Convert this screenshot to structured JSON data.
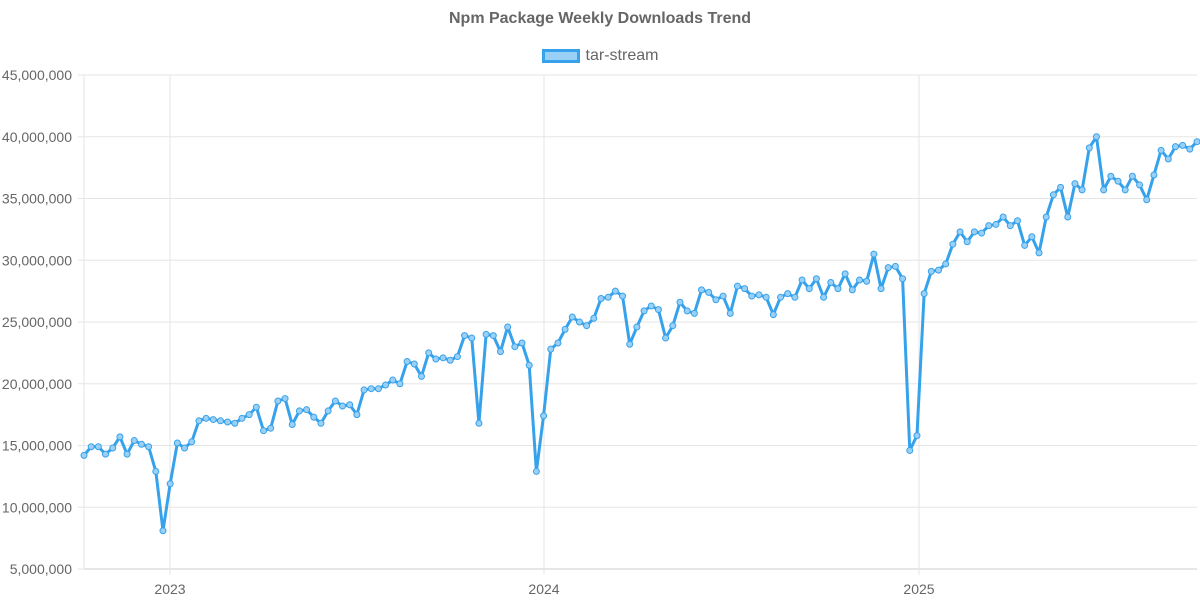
{
  "chart_data": {
    "type": "line",
    "title": "Npm Package Weekly Downloads Trend",
    "xlabel": "",
    "ylabel": "",
    "ylim": [
      5000000,
      45000000
    ],
    "y_ticks": [
      "5,000,000",
      "10,000,000",
      "15,000,000",
      "20,000,000",
      "25,000,000",
      "30,000,000",
      "35,000,000",
      "40,000,000",
      "45,000,000"
    ],
    "x_ticks": [
      "2023",
      "2024",
      "2025"
    ],
    "grid": true,
    "legend_position": "top",
    "colors": {
      "line": "#36a2eb",
      "fill": "#9ad0f5"
    },
    "series": [
      {
        "name": "tar-stream",
        "values": [
          14200000,
          14900000,
          14900000,
          14300000,
          14800000,
          15700000,
          14300000,
          15400000,
          15100000,
          14900000,
          12900000,
          8100000,
          11900000,
          15200000,
          14800000,
          15300000,
          17000000,
          17200000,
          17100000,
          17000000,
          16900000,
          16800000,
          17200000,
          17500000,
          18100000,
          16200000,
          16400000,
          18600000,
          18800000,
          16700000,
          17800000,
          17900000,
          17300000,
          16800000,
          17800000,
          18600000,
          18200000,
          18300000,
          17500000,
          19500000,
          19600000,
          19600000,
          19900000,
          20300000,
          20000000,
          21800000,
          21600000,
          20600000,
          22500000,
          22000000,
          22100000,
          21900000,
          22200000,
          23900000,
          23700000,
          16800000,
          24000000,
          23900000,
          22600000,
          24600000,
          23000000,
          23300000,
          21500000,
          12900000,
          17400000,
          22800000,
          23300000,
          24400000,
          25400000,
          25000000,
          24700000,
          25300000,
          26900000,
          27000000,
          27500000,
          27100000,
          23200000,
          24600000,
          25900000,
          26300000,
          26000000,
          23700000,
          24700000,
          26600000,
          25900000,
          25700000,
          27600000,
          27400000,
          26800000,
          27100000,
          25700000,
          27900000,
          27700000,
          27100000,
          27200000,
          27000000,
          25600000,
          27000000,
          27300000,
          27000000,
          28400000,
          27700000,
          28500000,
          27000000,
          28200000,
          27700000,
          28900000,
          27600000,
          28400000,
          28300000,
          30500000,
          27700000,
          29400000,
          29500000,
          28500000,
          14600000,
          15800000,
          27300000,
          29100000,
          29200000,
          29700000,
          31300000,
          32300000,
          31500000,
          32300000,
          32200000,
          32800000,
          32900000,
          33500000,
          32800000,
          33200000,
          31200000,
          31900000,
          30600000,
          33500000,
          35300000,
          35900000,
          33500000,
          36200000,
          35700000,
          39100000,
          40000000,
          35700000,
          36800000,
          36400000,
          35700000,
          36800000,
          36100000,
          34900000,
          36900000,
          38900000,
          38200000,
          39200000,
          39300000,
          39000000,
          39600000
        ]
      }
    ]
  }
}
